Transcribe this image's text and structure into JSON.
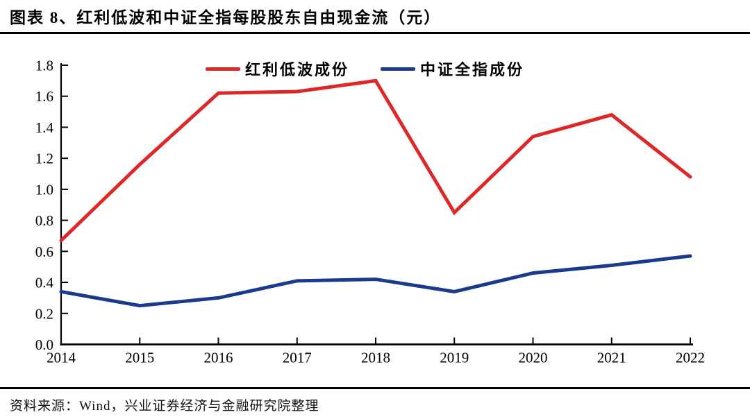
{
  "header": {
    "title": "图表 8、红利低波和中证全指每股股东自由现金流（元）"
  },
  "footer": {
    "source": "资料来源：Wind，兴业证券经济与金融研究院整理"
  },
  "chart_data": {
    "type": "line",
    "title": "红利低波和中证全指每股股东自由现金流（元）",
    "x": [
      "2014",
      "2015",
      "2016",
      "2017",
      "2018",
      "2019",
      "2020",
      "2021",
      "2022"
    ],
    "series": [
      {
        "id": "dividend-low-vol",
        "name": "红利低波成份",
        "color": "#dc2828",
        "values": [
          0.67,
          1.16,
          1.62,
          1.63,
          1.7,
          0.85,
          1.34,
          1.48,
          1.08
        ]
      },
      {
        "id": "csi-all-share",
        "name": "中证全指成份",
        "color": "#1c3a8c",
        "values": [
          0.34,
          0.25,
          0.3,
          0.41,
          0.42,
          0.34,
          0.46,
          0.51,
          0.57
        ]
      }
    ],
    "xlabel": "",
    "ylabel": "",
    "ylim": [
      0,
      1.8
    ],
    "ytick_step": 0.2,
    "ytick_labels": [
      "0.0",
      "0.2",
      "0.4",
      "0.6",
      "0.8",
      "1.0",
      "1.2",
      "1.4",
      "1.6",
      "1.8"
    ],
    "grid": false,
    "legend_position": "top-center",
    "axis_color": "#000000",
    "tick_style": "inside"
  }
}
